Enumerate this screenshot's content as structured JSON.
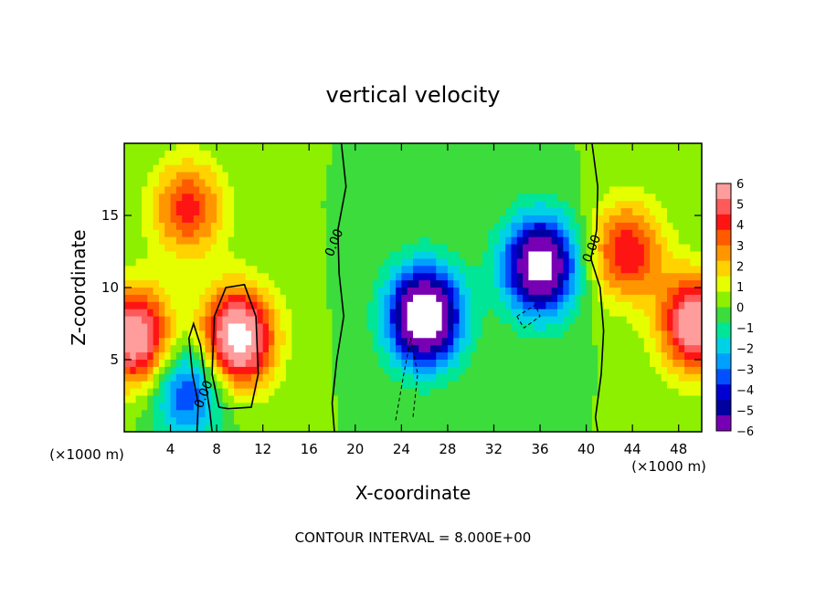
{
  "chart_data": {
    "type": "heatmap",
    "title": "vertical velocity",
    "xlabel": "X-coordinate",
    "ylabel": "Z-coordinate",
    "x_unit_left": "(×1000 m)",
    "x_unit_right": "(×1000 m)",
    "footer": "CONTOUR INTERVAL = 8.000E+00",
    "xlim": [
      0,
      50
    ],
    "ylim": [
      0,
      20
    ],
    "x_ticks": [
      4,
      8,
      12,
      16,
      20,
      24,
      28,
      32,
      36,
      40,
      44,
      48
    ],
    "y_ticks": [
      5,
      10,
      15
    ],
    "contour_labels": [
      {
        "text": "0.00",
        "x": 18.5,
        "y": 13
      },
      {
        "text": "0.00",
        "x": 40.8,
        "y": 12.6
      },
      {
        "text": "0.00",
        "x": 7.2,
        "y": 2.5
      }
    ],
    "colorbar": {
      "min": -6,
      "max": 6,
      "labels": [
        "6",
        "5",
        "4",
        "3",
        "2",
        "1",
        "0",
        "−1",
        "−2",
        "−3",
        "−4",
        "−5",
        "−6"
      ],
      "colors": [
        "#ff9c9c",
        "#ff5a5a",
        "#ff1414",
        "#ff5a00",
        "#ff9600",
        "#ffd200",
        "#e6ff00",
        "#8cf000",
        "#3cdc3c",
        "#00e696",
        "#00d2e6",
        "#00a0ff",
        "#0050ff",
        "#0000d2",
        "#0000a0",
        "#7800b4"
      ]
    },
    "features": [
      {
        "kind": "updraft",
        "x": 9.8,
        "z": 6.5,
        "w": 7.5
      },
      {
        "kind": "updraft",
        "x": 5.5,
        "z": 15.5,
        "w": 4.0
      },
      {
        "kind": "updraft",
        "x": 1.0,
        "z": 6.5,
        "w": 6.5
      },
      {
        "kind": "updraft",
        "x": 43.5,
        "z": 12.5,
        "w": 4.5
      },
      {
        "kind": "updraft",
        "x": 49.5,
        "z": 7.5,
        "w": 6.5
      },
      {
        "kind": "downdraft",
        "x": 26.0,
        "z": 8.0,
        "w": -8.5
      },
      {
        "kind": "downdraft",
        "x": 36.0,
        "z": 11.5,
        "w": -7.5
      },
      {
        "kind": "downdraft",
        "x": 5.5,
        "z": 3.0,
        "w": -4.0
      }
    ]
  }
}
